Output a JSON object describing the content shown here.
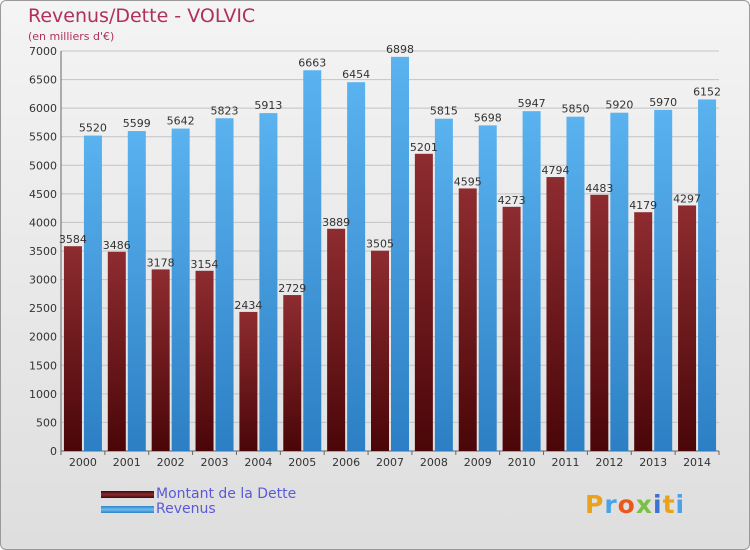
{
  "chart_data": {
    "type": "bar",
    "title": "Revenus/Dette - VOLVIC",
    "subtitle": "(en milliers d'€)",
    "categories": [
      "2000",
      "2001",
      "2002",
      "2003",
      "2004",
      "2005",
      "2006",
      "2007",
      "2008",
      "2009",
      "2010",
      "2011",
      "2012",
      "2013",
      "2014"
    ],
    "series": [
      {
        "name": "Montant de la Dette",
        "color": "#7a1e22",
        "values": [
          3584,
          3486,
          3178,
          3154,
          2434,
          2729,
          3889,
          3505,
          5201,
          4595,
          4273,
          4794,
          4483,
          4179,
          4297
        ],
        "labels": [
          "3584",
          "3486",
          "3178",
          "3154",
          "2434",
          "2729",
          "3889",
          "3505",
          "5201",
          "4595",
          "4273",
          "4794",
          "4483",
          "4179",
          "4297"
        ]
      },
      {
        "name": "Revenus",
        "color": "#4aa3e6",
        "values": [
          5520,
          5599,
          5642,
          5823,
          5913,
          6663,
          6454,
          6898,
          5815,
          5698,
          5947,
          5850,
          5920,
          5970,
          6152
        ],
        "labels": [
          "5520",
          "5599",
          "5642",
          "5823",
          "5913",
          "6663",
          "6454",
          "6898",
          "5815",
          "5698",
          "5947",
          "5850",
          "5920",
          "5970",
          "6152"
        ]
      }
    ],
    "ylim": [
      0,
      7000
    ],
    "yticks": [
      0,
      500,
      1000,
      1500,
      2000,
      2500,
      3000,
      3500,
      4000,
      4500,
      5000,
      5500,
      6000,
      6500,
      7000
    ],
    "grid": true,
    "legend": "bottom-left"
  },
  "brand": {
    "logo_text": "Proxiti",
    "colors": [
      "#e8a21c",
      "#4aa3e6",
      "#e85a1c",
      "#7bc043",
      "#3a73d1",
      "#e8a21c",
      "#4aa3e6"
    ]
  }
}
